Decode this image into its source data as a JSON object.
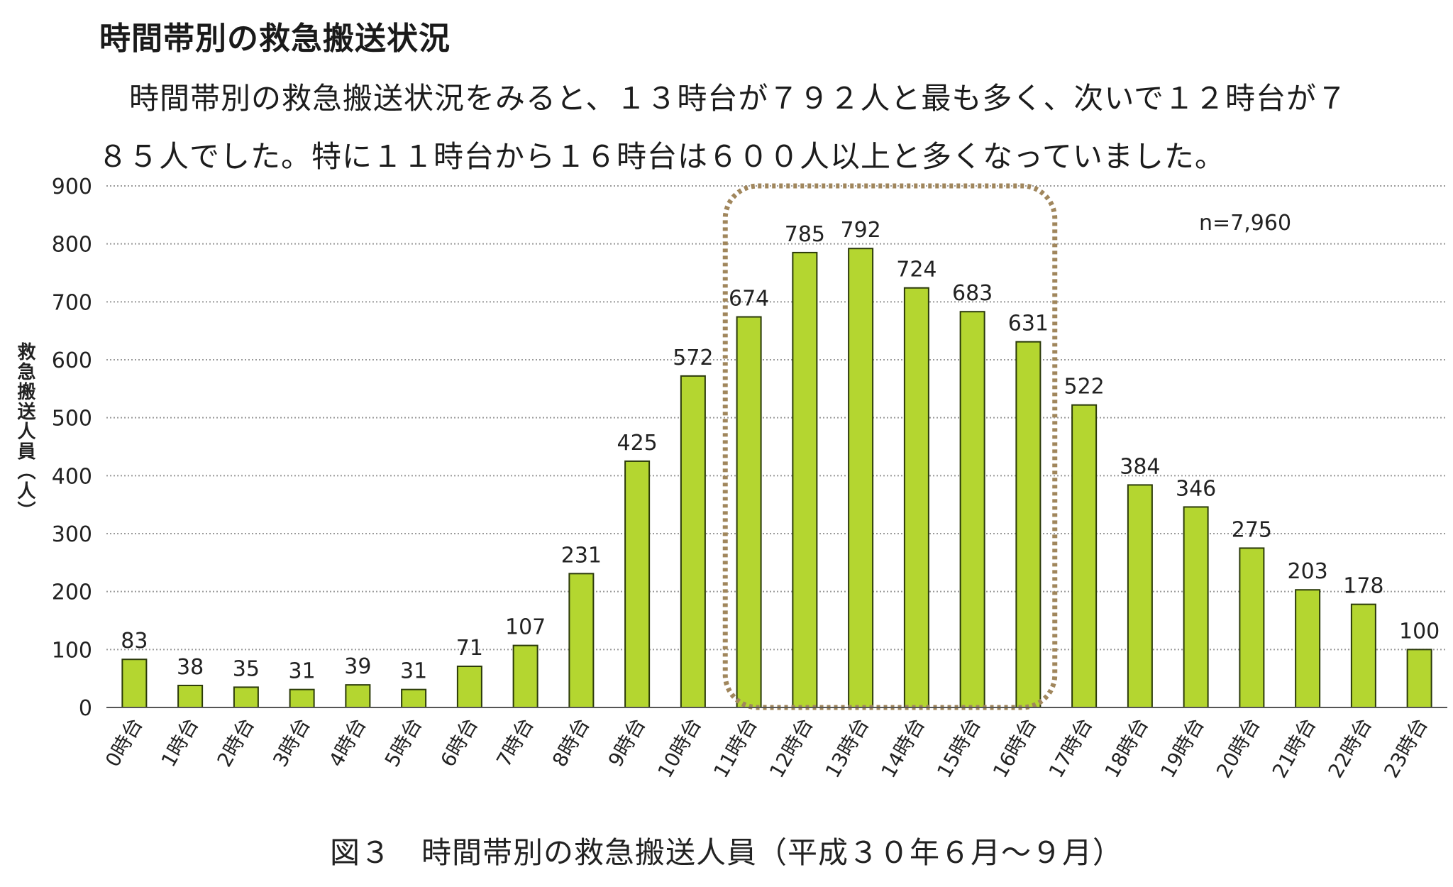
{
  "section_heading": "時間帯別の救急搬送状況",
  "paragraph": "時間帯別の救急搬送状況をみると、１３時台が７９２人と最も多く、次いで１２時台が７８５人でした。特に１１時台から１６時台は６００人以上と多くなっていました。",
  "caption": "図３　時間帯別の救急搬送人員（平成３０年６月～９月）",
  "colors": {
    "bar_fill": "#b4d630",
    "bar_stroke": "#2b3a0a",
    "highlight_box": "#a0865c",
    "grid": "#9a9a9a"
  },
  "chart_data": {
    "type": "bar",
    "ylabel": "救急搬送人員（人）",
    "xlabel": "",
    "ylim": [
      0,
      900
    ],
    "yticks": [
      0,
      100,
      200,
      300,
      400,
      500,
      600,
      700,
      800,
      900
    ],
    "grid": true,
    "annotation": "n=7,960",
    "highlighted_categories": [
      "11時台",
      "12時台",
      "13時台",
      "14時台",
      "15時台",
      "16時台"
    ],
    "categories": [
      "0時台",
      "1時台",
      "2時台",
      "3時台",
      "4時台",
      "5時台",
      "6時台",
      "7時台",
      "8時台",
      "9時台",
      "10時台",
      "11時台",
      "12時台",
      "13時台",
      "14時台",
      "15時台",
      "16時台",
      "17時台",
      "18時台",
      "19時台",
      "20時台",
      "21時台",
      "22時台",
      "23時台"
    ],
    "values": [
      83,
      38,
      35,
      31,
      39,
      31,
      71,
      107,
      231,
      425,
      572,
      674,
      785,
      792,
      724,
      683,
      631,
      522,
      384,
      346,
      275,
      203,
      178,
      100
    ]
  }
}
